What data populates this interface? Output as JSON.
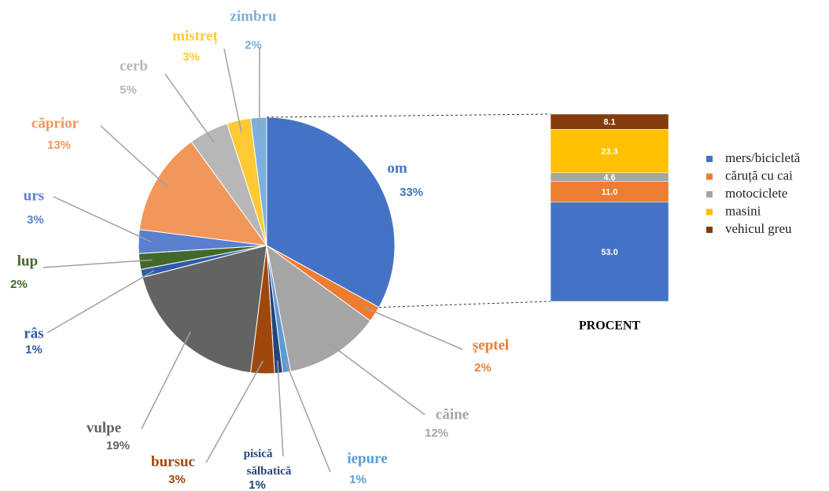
{
  "chart_data": [
    {
      "type": "pie",
      "categories": [
        "om",
        "șeptel",
        "câine",
        "iepure",
        "pisică sălbatică",
        "bursuc",
        "vulpe",
        "râs",
        "lup",
        "urs",
        "căprior",
        "cerb",
        "mistreț",
        "zimbru"
      ],
      "values": [
        33,
        2,
        12,
        1,
        1,
        3,
        19,
        1,
        2,
        3,
        13,
        5,
        3,
        2
      ],
      "value_labels": [
        "33%",
        "2%",
        "12%",
        "1%",
        "1%",
        "3%",
        "19%",
        "1%",
        "2%",
        "3%",
        "13%",
        "5%",
        "3%",
        "2%"
      ],
      "colors": [
        "#4472c4",
        "#ed7d31",
        "#a5a5a5",
        "#5b9bd5",
        "#264478",
        "#9e480e",
        "#636363",
        "#2e5ca8",
        "#43682b",
        "#5a7fcf",
        "#f1975a",
        "#b7b7b7",
        "#ffc935",
        "#7cafdd"
      ]
    },
    {
      "type": "bar",
      "categories": [
        "PROCENT"
      ],
      "series": [
        {
          "name": "mers/bicicletă",
          "color": "#4472c4",
          "values": [
            53.0
          ],
          "value_labels": [
            "53.0"
          ]
        },
        {
          "name": "căruță cu cai",
          "color": "#ed7d31",
          "values": [
            11.0
          ],
          "value_labels": [
            "11.0"
          ]
        },
        {
          "name": "motociclete",
          "color": "#a5a5a5",
          "values": [
            4.6
          ],
          "value_labels": [
            "4.6"
          ]
        },
        {
          "name": "masini",
          "color": "#ffc000",
          "values": [
            23.3
          ],
          "value_labels": [
            "23.3"
          ]
        },
        {
          "name": "vehicul greu",
          "color": "#843c0c",
          "values": [
            8.1
          ],
          "value_labels": [
            "8.1"
          ]
        }
      ]
    }
  ]
}
